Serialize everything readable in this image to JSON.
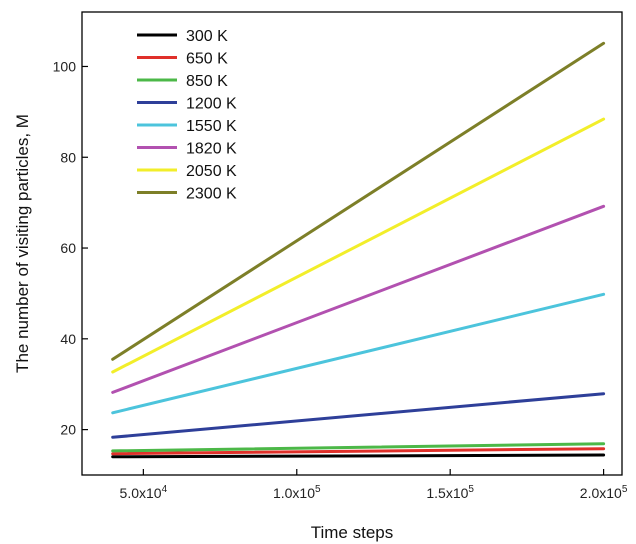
{
  "chart_data": {
    "type": "line",
    "title": "",
    "xlabel": "Time steps",
    "ylabel": "The number of visiting particles, M",
    "xlim": [
      30000,
      206000
    ],
    "ylim": [
      10,
      112
    ],
    "grid": false,
    "legend_position": "top-left",
    "x_ticks": [
      {
        "value": 50000,
        "mantissa": "5.0x10",
        "exp": "4"
      },
      {
        "value": 100000,
        "mantissa": "1.0x10",
        "exp": "5"
      },
      {
        "value": 150000,
        "mantissa": "1.5x10",
        "exp": "5"
      },
      {
        "value": 200000,
        "mantissa": "2.0x10",
        "exp": "5"
      }
    ],
    "y_ticks": [
      {
        "value": 20,
        "label": "20"
      },
      {
        "value": 40,
        "label": "40"
      },
      {
        "value": 60,
        "label": "60"
      },
      {
        "value": 80,
        "label": "80"
      },
      {
        "value": 100,
        "label": "100"
      }
    ],
    "series": [
      {
        "name": "300 K",
        "color": "#000000",
        "x": [
          40000,
          200000
        ],
        "values": [
          14.0,
          14.4
        ]
      },
      {
        "name": "650 K",
        "color": "#e0302a",
        "x": [
          40000,
          200000
        ],
        "values": [
          14.7,
          15.8
        ]
      },
      {
        "name": "850 K",
        "color": "#4cb848",
        "x": [
          40000,
          200000
        ],
        "values": [
          15.3,
          16.9
        ]
      },
      {
        "name": "1200 K",
        "color": "#2e3f99",
        "x": [
          40000,
          200000
        ],
        "values": [
          18.3,
          27.9
        ]
      },
      {
        "name": "1550 K",
        "color": "#4cc4dc",
        "x": [
          40000,
          200000
        ],
        "values": [
          23.7,
          49.8
        ]
      },
      {
        "name": "1820 K",
        "color": "#b251b0",
        "x": [
          40000,
          200000
        ],
        "values": [
          28.2,
          69.2
        ]
      },
      {
        "name": "2050 K",
        "color": "#f2ee2a",
        "x": [
          40000,
          200000
        ],
        "values": [
          32.7,
          88.4
        ]
      },
      {
        "name": "2300 K",
        "color": "#7d7f28",
        "x": [
          40000,
          200000
        ],
        "values": [
          35.5,
          105.1
        ]
      }
    ]
  }
}
